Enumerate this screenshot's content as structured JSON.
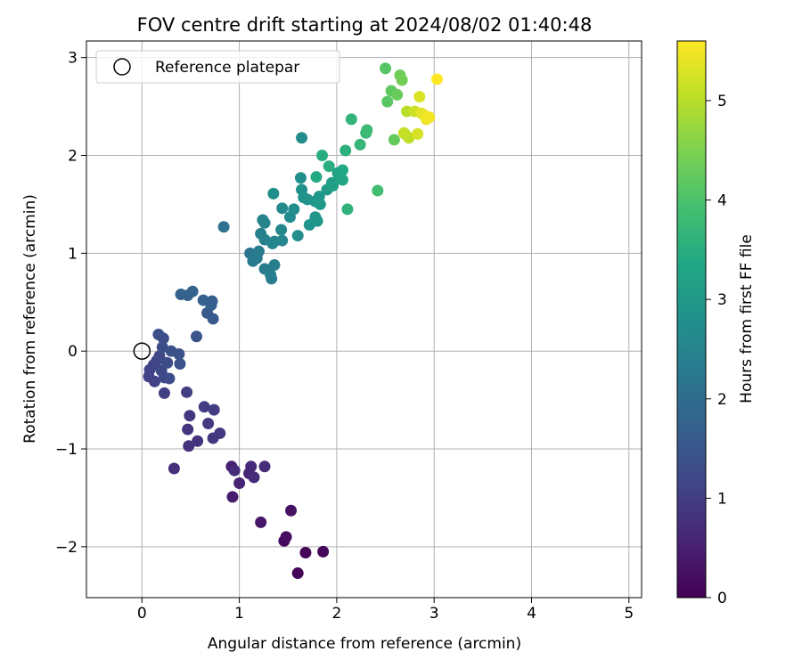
{
  "chart_data": {
    "type": "scatter",
    "title": "FOV centre drift starting at 2024/08/02 01:40:48",
    "xlabel": "Angular distance from reference (arcmin)",
    "ylabel": "Rotation from reference (arcmin)",
    "xlim": [
      -0.57,
      5.13
    ],
    "ylim": [
      -2.52,
      3.17
    ],
    "xticks": [
      "0",
      "1",
      "2",
      "3",
      "4",
      "5"
    ],
    "yticks": [
      "−2",
      "−1",
      "0",
      "1",
      "2",
      "3"
    ],
    "grid": true,
    "legend": {
      "placement": "top-left",
      "entries": [
        "Reference platepar"
      ]
    },
    "reference_point": {
      "x": 0,
      "y": 0
    },
    "colorbar": {
      "label": "Hours from first FF file",
      "colormap": "viridis",
      "range": [
        0,
        5.6
      ],
      "ticks": [
        "0",
        "1",
        "2",
        "3",
        "4",
        "5"
      ]
    },
    "points": [
      [
        1.6,
        -2.27,
        0.05
      ],
      [
        1.68,
        -2.06,
        0.08
      ],
      [
        1.86,
        -2.05,
        0.1
      ],
      [
        1.46,
        -1.94,
        0.15
      ],
      [
        1.48,
        -1.9,
        0.18
      ],
      [
        1.53,
        -1.63,
        0.25
      ],
      [
        1.22,
        -1.75,
        0.35
      ],
      [
        0.93,
        -1.49,
        0.45
      ],
      [
        0.92,
        -1.18,
        0.5
      ],
      [
        1.0,
        -1.35,
        0.55
      ],
      [
        1.1,
        -1.25,
        0.6
      ],
      [
        1.12,
        -1.18,
        0.65
      ],
      [
        1.15,
        -1.29,
        0.68
      ],
      [
        1.26,
        -1.18,
        0.7
      ],
      [
        0.95,
        -1.22,
        0.72
      ],
      [
        0.33,
        -1.2,
        0.75
      ],
      [
        0.48,
        -0.97,
        0.8
      ],
      [
        0.57,
        -0.92,
        0.82
      ],
      [
        0.47,
        -0.8,
        0.85
      ],
      [
        0.49,
        -0.66,
        0.88
      ],
      [
        0.73,
        -0.89,
        0.9
      ],
      [
        0.8,
        -0.84,
        0.92
      ],
      [
        0.68,
        -0.74,
        0.95
      ],
      [
        0.64,
        -0.57,
        0.98
      ],
      [
        0.74,
        -0.6,
        1.0
      ],
      [
        0.46,
        -0.42,
        1.02
      ],
      [
        0.23,
        -0.43,
        1.05
      ],
      [
        0.13,
        -0.31,
        1.08
      ],
      [
        0.07,
        -0.26,
        1.1
      ],
      [
        0.08,
        -0.19,
        1.12
      ],
      [
        0.12,
        -0.14,
        1.15
      ],
      [
        0.15,
        -0.1,
        1.18
      ],
      [
        0.18,
        -0.05,
        1.2
      ],
      [
        0.2,
        -0.2,
        1.22
      ],
      [
        0.23,
        -0.27,
        1.24
      ],
      [
        0.26,
        -0.12,
        1.26
      ],
      [
        0.28,
        -0.28,
        1.28
      ],
      [
        0.21,
        0.04,
        1.3
      ],
      [
        0.22,
        0.13,
        1.32
      ],
      [
        0.17,
        0.17,
        1.34
      ],
      [
        0.3,
        0.0,
        1.36
      ],
      [
        0.38,
        -0.03,
        1.38
      ],
      [
        0.39,
        -0.13,
        1.4
      ],
      [
        0.56,
        0.15,
        1.45
      ],
      [
        0.67,
        0.39,
        1.55
      ],
      [
        0.73,
        0.33,
        1.6
      ],
      [
        0.71,
        0.47,
        1.65
      ],
      [
        0.72,
        0.51,
        1.7
      ],
      [
        0.63,
        0.52,
        1.72
      ],
      [
        0.47,
        0.57,
        1.75
      ],
      [
        0.4,
        0.58,
        1.78
      ],
      [
        0.52,
        0.61,
        1.8
      ],
      [
        0.84,
        1.27,
        2.1
      ],
      [
        1.11,
        1.0,
        2.2
      ],
      [
        1.14,
        0.92,
        2.25
      ],
      [
        1.18,
        0.95,
        2.28
      ],
      [
        1.2,
        1.02,
        2.3
      ],
      [
        1.26,
        0.84,
        2.32
      ],
      [
        1.32,
        0.78,
        2.35
      ],
      [
        1.33,
        0.74,
        2.38
      ],
      [
        1.36,
        0.88,
        2.4
      ],
      [
        1.22,
        1.2,
        2.42
      ],
      [
        1.26,
        1.14,
        2.45
      ],
      [
        1.24,
        1.34,
        2.47
      ],
      [
        1.26,
        1.31,
        2.5
      ],
      [
        1.34,
        1.1,
        2.52
      ],
      [
        1.36,
        1.12,
        2.55
      ],
      [
        1.44,
        1.13,
        2.58
      ],
      [
        1.43,
        1.24,
        2.6
      ],
      [
        1.44,
        1.46,
        2.62
      ],
      [
        1.52,
        1.37,
        2.65
      ],
      [
        1.56,
        1.45,
        2.68
      ],
      [
        1.6,
        1.18,
        2.7
      ],
      [
        1.64,
        2.18,
        2.72
      ],
      [
        1.35,
        1.61,
        2.75
      ],
      [
        1.63,
        1.77,
        2.78
      ],
      [
        1.64,
        1.65,
        2.8
      ],
      [
        1.66,
        1.57,
        2.83
      ],
      [
        1.7,
        1.55,
        2.86
      ],
      [
        1.72,
        1.29,
        2.88
      ],
      [
        1.78,
        1.37,
        2.9
      ],
      [
        1.8,
        1.33,
        2.92
      ],
      [
        1.78,
        1.53,
        2.95
      ],
      [
        1.82,
        1.58,
        2.97
      ],
      [
        1.83,
        1.5,
        3.0
      ],
      [
        1.9,
        1.65,
        3.05
      ],
      [
        1.95,
        1.72,
        3.1
      ],
      [
        1.96,
        1.69,
        3.15
      ],
      [
        2.01,
        1.82,
        3.2
      ],
      [
        2.03,
        1.77,
        3.25
      ],
      [
        2.06,
        1.75,
        3.3
      ],
      [
        2.06,
        1.85,
        3.35
      ],
      [
        1.79,
        1.78,
        3.4
      ],
      [
        1.85,
        2.0,
        3.45
      ],
      [
        1.92,
        1.89,
        3.5
      ],
      [
        2.09,
        2.05,
        3.55
      ],
      [
        2.11,
        1.45,
        3.6
      ],
      [
        2.15,
        2.37,
        3.65
      ],
      [
        2.24,
        2.11,
        3.7
      ],
      [
        2.3,
        2.23,
        3.75
      ],
      [
        2.31,
        2.26,
        3.8
      ],
      [
        2.42,
        1.64,
        3.9
      ],
      [
        2.5,
        2.89,
        4.1
      ],
      [
        2.52,
        2.55,
        4.15
      ],
      [
        2.56,
        2.66,
        4.2
      ],
      [
        2.59,
        2.16,
        4.25
      ],
      [
        2.62,
        2.62,
        4.3
      ],
      [
        2.65,
        2.82,
        4.35
      ],
      [
        2.67,
        2.77,
        4.4
      ],
      [
        2.7,
        2.22,
        4.9
      ],
      [
        2.72,
        2.45,
        5.0
      ],
      [
        2.74,
        2.18,
        5.05
      ],
      [
        2.69,
        2.23,
        5.1
      ],
      [
        2.8,
        2.45,
        5.2
      ],
      [
        2.83,
        2.22,
        5.25
      ],
      [
        2.85,
        2.6,
        5.3
      ],
      [
        2.87,
        2.43,
        5.35
      ],
      [
        2.9,
        2.41,
        5.4
      ],
      [
        2.92,
        2.37,
        5.45
      ],
      [
        2.95,
        2.39,
        5.5
      ],
      [
        3.03,
        2.78,
        5.6
      ]
    ]
  }
}
